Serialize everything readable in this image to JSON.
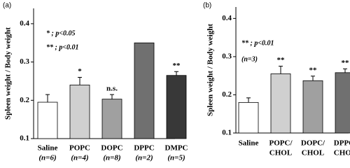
{
  "chart_data": [
    {
      "type": "bar",
      "panel_label": "(a)",
      "ylabel": "Spleen weight / Body weight",
      "categories": [
        "Saline",
        "POPC",
        "DOPC",
        "DPPC",
        "DMPC"
      ],
      "category_notes": [
        "(n=6)",
        "(n=4)",
        "(n=8)",
        "(n=2)",
        "(n=5)"
      ],
      "values": [
        0.195,
        0.24,
        0.203,
        0.35,
        0.265
      ],
      "errors": [
        0.02,
        0.02,
        0.012,
        null,
        0.01
      ],
      "annotations": [
        null,
        "*",
        "n.s.",
        null,
        "**"
      ],
      "colors": [
        "#ffffff",
        "#d0d0d0",
        "#a0a0a0",
        "#707070",
        "#383838"
      ],
      "notes": [
        "* ; p<0.05",
        "** ; p<0.01"
      ],
      "ylim": [
        0.1,
        0.44
      ],
      "yticks": [
        0.1,
        0.2,
        0.3,
        0.4
      ]
    },
    {
      "type": "bar",
      "panel_label": "(b)",
      "ylabel": "Spleen weight / Body weight",
      "categories": [
        [
          "Saline"
        ],
        [
          "POPC/",
          "CHOL"
        ],
        [
          "DOPC/",
          "CHOL"
        ],
        [
          "DPPC/",
          "CHOL"
        ]
      ],
      "values": [
        0.18,
        0.255,
        0.237,
        0.258
      ],
      "errors": [
        0.012,
        0.02,
        0.012,
        0.01
      ],
      "annotations": [
        null,
        "**",
        "**",
        "**"
      ],
      "colors": [
        "#ffffff",
        "#d0d0d0",
        "#a0a0a0",
        "#707070"
      ],
      "notes": [
        "** ; p<0.01",
        "(n=3)"
      ],
      "ylim": [
        0.1,
        0.43
      ],
      "yticks": [
        0.1,
        0.2,
        0.3,
        0.4
      ]
    }
  ]
}
